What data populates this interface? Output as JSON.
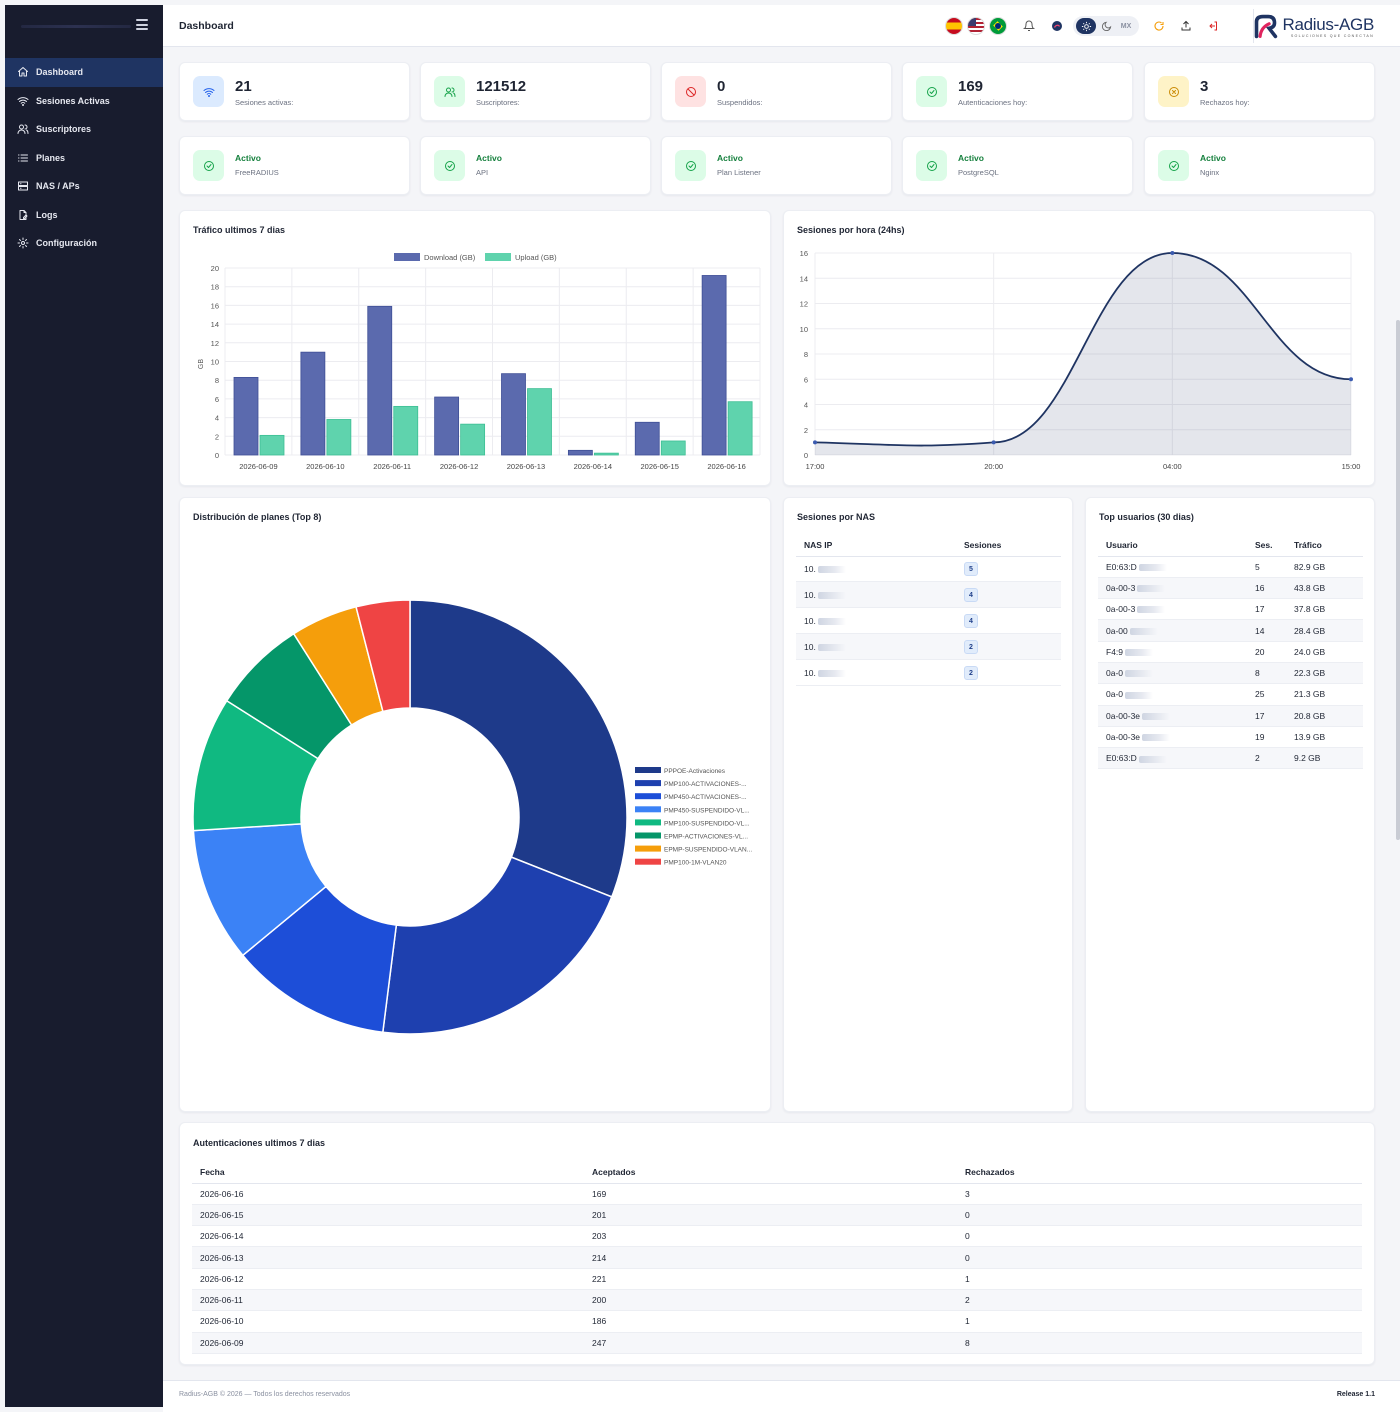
{
  "sidebar": {
    "items": [
      {
        "label": "Dashboard",
        "icon": "home-icon",
        "active": true
      },
      {
        "label": "Sesiones Activas",
        "icon": "wifi-icon"
      },
      {
        "label": "Suscriptores",
        "icon": "users-icon"
      },
      {
        "label": "Planes",
        "icon": "list-icon"
      },
      {
        "label": "NAS / APs",
        "icon": "server-icon"
      },
      {
        "label": "Logs",
        "icon": "file-icon"
      },
      {
        "label": "Configuración",
        "icon": "gear-icon"
      }
    ]
  },
  "header": {
    "title": "Dashboard",
    "languages": [
      "es",
      "en",
      "pt"
    ],
    "theme_mx": "MX",
    "brand": "Radius-AGB",
    "brand_tagline": "SOLUCIONES QUE CONECTAN"
  },
  "stats": [
    {
      "value": "21",
      "label": "Sesiones activas:",
      "icon": "wifi-icon",
      "bg": "#dbeafe",
      "color": "#2563eb"
    },
    {
      "value": "121512",
      "label": "Suscriptores:",
      "icon": "users-icon",
      "bg": "#dcfce7",
      "color": "#16a34a"
    },
    {
      "value": "0",
      "label": "Suspendidos:",
      "icon": "ban-icon",
      "bg": "#fee2e2",
      "color": "#dc2626"
    },
    {
      "value": "169",
      "label": "Autenticaciones hoy:",
      "icon": "check-circle-icon",
      "bg": "#dcfce7",
      "color": "#16a34a"
    },
    {
      "value": "3",
      "label": "Rechazos hoy:",
      "icon": "x-circle-icon",
      "bg": "#fef3c7",
      "color": "#ca8a04"
    }
  ],
  "services": [
    {
      "status": "Activo",
      "name": "FreeRADIUS"
    },
    {
      "status": "Activo",
      "name": "API"
    },
    {
      "status": "Activo",
      "name": "Plan Listener"
    },
    {
      "status": "Activo",
      "name": "PostgreSQL"
    },
    {
      "status": "Activo",
      "name": "Nginx"
    }
  ],
  "traffic": {
    "title": "Tráfico ultimos 7 dias",
    "chart_data": {
      "type": "bar",
      "categories": [
        "2026-06-09",
        "2026-06-10",
        "2026-06-11",
        "2026-06-12",
        "2026-06-13",
        "2026-06-14",
        "2026-06-15",
        "2026-06-16"
      ],
      "series": [
        {
          "name": "Download (GB)",
          "values": [
            8.3,
            11.0,
            15.9,
            6.2,
            8.7,
            0.5,
            3.5,
            19.2
          ],
          "color": "#5b6aae"
        },
        {
          "name": "Upload (GB)",
          "values": [
            2.1,
            3.8,
            5.2,
            3.3,
            7.1,
            0.2,
            1.5,
            5.7
          ],
          "color": "#5fd3ad"
        }
      ],
      "ylabel": "GB",
      "ylim": [
        0,
        20
      ],
      "yticks": [
        0,
        2,
        4,
        6,
        8,
        10,
        12,
        14,
        16,
        18,
        20
      ],
      "legend": "top",
      "grid": true
    }
  },
  "sessions_hour": {
    "title": "Sesiones por hora (24hs)",
    "chart_data": {
      "type": "area",
      "x": [
        "17:00",
        "20:00",
        "04:00",
        "15:00"
      ],
      "series": [
        {
          "values": [
            1,
            1,
            16,
            6
          ],
          "color": "#1f3462"
        }
      ],
      "ylim": [
        0,
        16
      ],
      "yticks": [
        0,
        2,
        4,
        6,
        8,
        10,
        12,
        14,
        16
      ],
      "grid": true
    }
  },
  "plans": {
    "title": "Distribución de planes (Top 8)",
    "chart_data": {
      "type": "pie",
      "categories": [
        "PPPOE-Activaciones",
        "PMP100-ACTIVACIONES-...",
        "PMP450-ACTIVACIONES-...",
        "PMP450-SUSPENDIDO-VL...",
        "PMP100-SUSPENDIDO-VL...",
        "EPMP-ACTIVACIONES-VL...",
        "EPMP-SUSPENDIDO-VLAN...",
        "PMP100-1M-VLAN20"
      ],
      "values": [
        31,
        21,
        12,
        10,
        10,
        7,
        5,
        4
      ],
      "colors": [
        "#1e3a8a",
        "#1e40af",
        "#1d4ed8",
        "#3b82f6",
        "#10b981",
        "#059669",
        "#f59e0b",
        "#ef4444"
      ],
      "legend": "right"
    }
  },
  "nas": {
    "title": "Sesiones por NAS",
    "headers": [
      "NAS IP",
      "Sesiones"
    ],
    "rows": [
      {
        "ip": "10.",
        "sessions": "5"
      },
      {
        "ip": "10.",
        "sessions": "4"
      },
      {
        "ip": "10.",
        "sessions": "4"
      },
      {
        "ip": "10.",
        "sessions": "2"
      },
      {
        "ip": "10.",
        "sessions": "2"
      }
    ]
  },
  "top_users": {
    "title": "Top usuarios (30 dias)",
    "headers": [
      "Usuario",
      "Ses.",
      "Tráfico"
    ],
    "rows": [
      {
        "user": "E0:63:D",
        "ses": "5",
        "traffic": "82.9 GB"
      },
      {
        "user": "0a-00-3",
        "ses": "16",
        "traffic": "43.8 GB"
      },
      {
        "user": "0a-00-3",
        "ses": "17",
        "traffic": "37.8 GB"
      },
      {
        "user": "0a-00",
        "ses": "14",
        "traffic": "28.4 GB"
      },
      {
        "user": "F4:9",
        "ses": "20",
        "traffic": "24.0 GB"
      },
      {
        "user": "0a-0",
        "ses": "8",
        "traffic": "22.3 GB"
      },
      {
        "user": "0a-0",
        "ses": "25",
        "traffic": "21.3 GB"
      },
      {
        "user": "0a-00-3e",
        "ses": "17",
        "traffic": "20.8 GB"
      },
      {
        "user": "0a-00-3e",
        "ses": "19",
        "traffic": "13.9 GB"
      },
      {
        "user": "E0:63:D",
        "ses": "2",
        "traffic": "9.2 GB"
      }
    ]
  },
  "auth": {
    "title": "Autenticaciones ultimos 7 dias",
    "headers": [
      "Fecha",
      "Aceptados",
      "Rechazados"
    ],
    "rows": [
      {
        "date": "2026-06-16",
        "ok": "169",
        "rej": "3"
      },
      {
        "date": "2026-06-15",
        "ok": "201",
        "rej": "0"
      },
      {
        "date": "2026-06-14",
        "ok": "203",
        "rej": "0"
      },
      {
        "date": "2026-06-13",
        "ok": "214",
        "rej": "0"
      },
      {
        "date": "2026-06-12",
        "ok": "221",
        "rej": "1"
      },
      {
        "date": "2026-06-11",
        "ok": "200",
        "rej": "2"
      },
      {
        "date": "2026-06-10",
        "ok": "186",
        "rej": "1"
      },
      {
        "date": "2026-06-09",
        "ok": "247",
        "rej": "8"
      }
    ]
  },
  "footer": {
    "copyright": "Radius-AGB © 2026 — Todos los derechos reservados",
    "release": "Release 1.1"
  }
}
